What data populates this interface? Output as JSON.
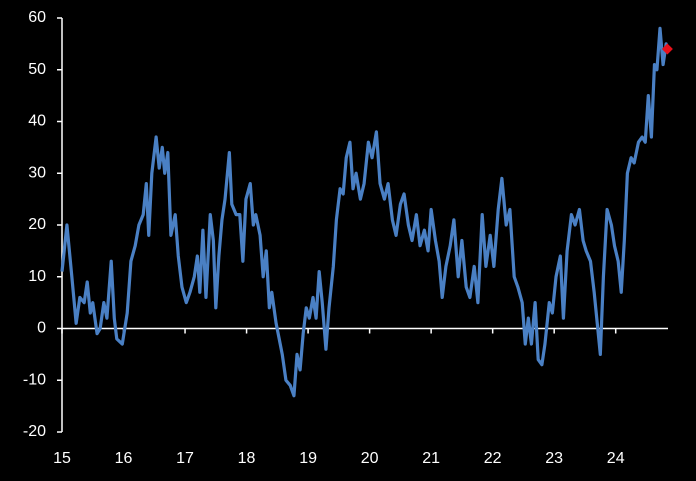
{
  "chart_data": {
    "type": "line",
    "x": [
      15.0,
      15.08,
      15.16,
      15.23,
      15.29,
      15.36,
      15.41,
      15.46,
      15.5,
      15.57,
      15.62,
      15.68,
      15.73,
      15.8,
      15.85,
      15.89,
      15.98,
      16.06,
      16.12,
      16.19,
      16.25,
      16.32,
      16.37,
      16.41,
      16.46,
      16.53,
      16.58,
      16.63,
      16.67,
      16.72,
      16.77,
      16.84,
      16.89,
      16.95,
      17.02,
      17.08,
      17.15,
      17.2,
      17.24,
      17.29,
      17.34,
      17.41,
      17.46,
      17.5,
      17.55,
      17.6,
      17.65,
      17.72,
      17.76,
      17.83,
      17.89,
      17.94,
      17.99,
      18.06,
      18.11,
      18.15,
      18.22,
      18.27,
      18.32,
      18.37,
      18.41,
      18.48,
      18.53,
      18.58,
      18.64,
      18.71,
      18.77,
      18.82,
      18.87,
      18.92,
      18.97,
      19.02,
      19.08,
      19.13,
      19.18,
      19.23,
      19.29,
      19.34,
      19.41,
      19.46,
      19.52,
      19.57,
      19.62,
      19.68,
      19.73,
      19.78,
      19.85,
      19.91,
      19.98,
      20.04,
      20.11,
      20.17,
      20.24,
      20.3,
      20.37,
      20.43,
      20.5,
      20.56,
      20.63,
      20.69,
      20.76,
      20.82,
      20.89,
      20.95,
      21.0,
      21.07,
      21.13,
      21.18,
      21.24,
      21.31,
      21.37,
      21.44,
      21.5,
      21.57,
      21.63,
      21.7,
      21.76,
      21.83,
      21.89,
      21.96,
      22.02,
      22.09,
      22.15,
      22.22,
      22.28,
      22.35,
      22.41,
      22.48,
      22.53,
      22.58,
      22.63,
      22.69,
      22.74,
      22.8,
      22.85,
      22.92,
      22.97,
      23.03,
      23.1,
      23.15,
      23.21,
      23.28,
      23.34,
      23.41,
      23.47,
      23.52,
      23.59,
      23.65,
      23.7,
      23.75,
      23.8,
      23.86,
      23.93,
      23.98,
      24.04,
      24.09,
      24.14,
      24.19,
      24.25,
      24.3,
      24.37,
      24.43,
      24.48,
      24.53,
      24.58,
      24.63,
      24.67,
      24.72,
      24.77,
      24.82,
      24.84
    ],
    "series": [
      {
        "color": "#4a80c4",
        "values": [
          11,
          20,
          10,
          1,
          6,
          5,
          9,
          3,
          5,
          -1,
          0,
          5,
          2,
          13,
          2,
          -2,
          -3,
          3,
          13,
          16,
          20,
          22,
          28,
          18,
          30,
          37,
          31,
          35,
          30,
          34,
          18,
          22,
          14,
          8,
          5,
          7,
          10,
          14,
          7,
          19,
          6,
          22,
          17,
          4,
          14,
          21,
          25,
          34,
          24,
          22,
          22,
          13,
          25,
          28,
          20,
          22,
          18,
          10,
          15,
          4,
          7,
          1,
          -2,
          -5,
          -10,
          -11,
          -13,
          -5,
          -8,
          -1,
          4,
          2,
          6,
          2,
          11,
          5,
          -4,
          4,
          12,
          21,
          27,
          26,
          33,
          36,
          27,
          30,
          25,
          28,
          36,
          33,
          38,
          28,
          25,
          28,
          21,
          18,
          24,
          26,
          20,
          17,
          22,
          16,
          19,
          15,
          23,
          17,
          13,
          6,
          12,
          16,
          21,
          10,
          17,
          8,
          6,
          12,
          5,
          22,
          12,
          18,
          12,
          23,
          29,
          20,
          23,
          10,
          8,
          5,
          -3,
          2,
          -3,
          5,
          -6,
          -7,
          -3,
          5,
          3,
          10,
          14,
          2,
          15,
          22,
          20,
          23,
          17,
          15,
          13,
          7,
          1,
          -5,
          10,
          23,
          20,
          16,
          13,
          7,
          17,
          30,
          33,
          32,
          36,
          37,
          36,
          45,
          37,
          51,
          50,
          58,
          51,
          55,
          54
        ]
      }
    ],
    "last_point_color": "#e8101a",
    "xlim": [
      15,
      24.85
    ],
    "xticks": [
      15,
      16,
      17,
      18,
      19,
      20,
      21,
      22,
      23,
      24
    ],
    "ylim": [
      -20,
      60
    ],
    "yticks": [
      -20,
      -10,
      0,
      10,
      20,
      30,
      40,
      50,
      60
    ]
  }
}
